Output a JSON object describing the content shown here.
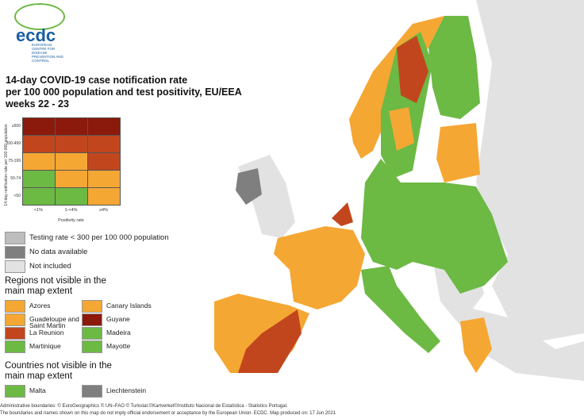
{
  "logo": {
    "name": "ecdc",
    "subtitle": "EUROPEAN CENTRE FOR DISEASE PREVENTION AND CONTROL"
  },
  "title": [
    "14-day COVID-19 case notification rate",
    "per 100 000 population and test positivity, EU/EEA",
    "weeks 22 - 23"
  ],
  "matrix": {
    "y_label": "14-day notification rate per 100 000 population",
    "x_label": "Positivity rate",
    "columns": [
      "<1%",
      "1-<4%",
      "≥4%"
    ],
    "rows": [
      {
        "label": "≥500",
        "colors": [
          "#8b1a0c",
          "#8b1a0c",
          "#8b1a0c"
        ]
      },
      {
        "label": "200-499",
        "colors": [
          "#c2461d",
          "#c2461d",
          "#c2461d"
        ]
      },
      {
        "label": "75-199",
        "colors": [
          "#f5a733",
          "#f5a733",
          "#c2461d"
        ]
      },
      {
        "label": "50-74",
        "colors": [
          "#6cb944",
          "#f5a733",
          "#f5a733"
        ]
      },
      {
        "label": "<50",
        "colors": [
          "#6cb944",
          "#6cb944",
          "#f5a733"
        ]
      }
    ]
  },
  "legend": [
    {
      "label": "Testing rate < 300 per 100 000 population",
      "color": "#bdbdbd"
    },
    {
      "label": "No data available",
      "color": "#7f7f7f"
    },
    {
      "label": "Not included",
      "color": "#e2e2e2"
    }
  ],
  "regions": {
    "title": "Regions not visible in the main map extent",
    "items": [
      {
        "label": "Azores",
        "color": "#f5a733"
      },
      {
        "label": "Canary Islands",
        "color": "#f5a733"
      },
      {
        "label": "Guadeloupe and Saint Martin",
        "color": "#f5a733"
      },
      {
        "label": "Guyane",
        "color": "#8b1a0c"
      },
      {
        "label": "La Reunion",
        "color": "#c2461d"
      },
      {
        "label": "Madeira",
        "color": "#6cb944"
      },
      {
        "label": "Martinique",
        "color": "#6cb944"
      },
      {
        "label": "Mayotte",
        "color": "#6cb944"
      }
    ]
  },
  "countries": {
    "title": "Countries not visible in the main map extent",
    "items": [
      {
        "label": "Malta",
        "color": "#6cb944"
      },
      {
        "label": "Liechtenstein",
        "color": "#7f7f7f"
      }
    ]
  },
  "footer": [
    "Administrative boundaries: © EuroGeographics © UN–FAO © Turkstat.©Kartverket©Instituto Nacional de Estatística - Statistics Portugal.",
    "The boundaries and names shown on this map do not imply official endorsement or acceptance by the European Union. ECDC. Map produced on: 17 Jun 2021"
  ]
}
